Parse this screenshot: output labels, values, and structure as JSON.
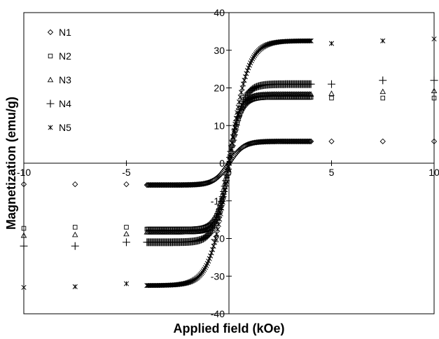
{
  "chart_data": {
    "type": "scatter",
    "title": "",
    "xlabel": "Applied field (kOe)",
    "ylabel": "Magnetization (emu/g)",
    "xlim": [
      -10,
      10
    ],
    "ylim": [
      -40,
      40
    ],
    "x_ticks": [
      -10,
      -5,
      0,
      5,
      10
    ],
    "x_tick_labels": [
      "-10",
      "-5",
      "0",
      "5",
      "10"
    ],
    "y_ticks": [
      -40,
      -30,
      -20,
      -10,
      0,
      10,
      20,
      30,
      40
    ],
    "y_tick_labels": [
      "-40",
      "-30",
      "-20",
      "-10",
      "0",
      "10",
      "20",
      "30",
      "40"
    ],
    "grid": false,
    "legend_position": "top-left",
    "series": [
      {
        "name": "N1",
        "marker": "diamond",
        "saturation": 5.8,
        "k": 1.4,
        "points": [
          [
            -10,
            -5.6
          ],
          [
            -7.5,
            -5.6
          ],
          [
            -5,
            -5.6
          ],
          [
            5,
            5.8
          ],
          [
            7.5,
            5.8
          ],
          [
            10,
            5.8
          ]
        ]
      },
      {
        "name": "N2",
        "marker": "square",
        "saturation": 17.5,
        "k": 1.8,
        "points": [
          [
            -10,
            -17.3
          ],
          [
            -7.5,
            -17.0
          ],
          [
            -5,
            -17.0
          ],
          [
            5,
            17.3
          ],
          [
            7.5,
            17.3
          ],
          [
            10,
            17.3
          ]
        ]
      },
      {
        "name": "N3",
        "marker": "triangle",
        "saturation": 18.3,
        "k": 1.8,
        "points": [
          [
            -10,
            -19.2
          ],
          [
            -7.5,
            -19.0
          ],
          [
            -5,
            -18.8
          ],
          [
            5,
            18.5
          ],
          [
            7.5,
            19.0
          ],
          [
            10,
            19.2
          ]
        ]
      },
      {
        "name": "N4",
        "marker": "plus",
        "saturation": 21.0,
        "k": 1.5,
        "points": [
          [
            -10,
            -22.0
          ],
          [
            -7.5,
            -22.0
          ],
          [
            -5,
            -21.0
          ],
          [
            5,
            21.0
          ],
          [
            7.5,
            22.0
          ],
          [
            10,
            22.0
          ]
        ]
      },
      {
        "name": "N5",
        "marker": "asterisk",
        "saturation": 32.5,
        "k": 1.1,
        "points": [
          [
            -10,
            -33.0
          ],
          [
            -7.5,
            -32.8
          ],
          [
            -5,
            -32.0
          ],
          [
            5,
            31.8
          ],
          [
            7.5,
            32.5
          ],
          [
            10,
            33.0
          ]
        ]
      }
    ],
    "dense_curve_range": [
      -4,
      4
    ],
    "dense_curve_points": 160
  }
}
